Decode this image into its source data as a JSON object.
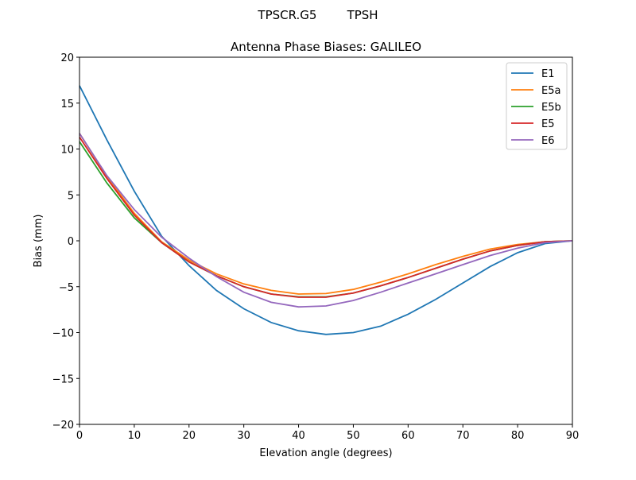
{
  "suptitle": "TPSCR.G5        TPSH",
  "chart_data": {
    "type": "line",
    "title": "Antenna Phase Biases: GALILEO",
    "xlabel": "Elevation angle (degrees)",
    "ylabel": "Bias (mm)",
    "xlim": [
      0,
      90
    ],
    "ylim": [
      -20,
      20
    ],
    "xticks": [
      0,
      10,
      20,
      30,
      40,
      50,
      60,
      70,
      80,
      90
    ],
    "yticks": [
      -20,
      -15,
      -10,
      -5,
      0,
      5,
      10,
      15,
      20
    ],
    "ytick_labels": [
      "−20",
      "−15",
      "−10",
      "−5",
      "0",
      "5",
      "10",
      "15",
      "20"
    ],
    "grid": false,
    "legend_position": "top-right",
    "x": [
      0,
      5,
      10,
      15,
      20,
      25,
      30,
      35,
      40,
      45,
      50,
      55,
      60,
      65,
      70,
      75,
      80,
      85,
      90
    ],
    "series": [
      {
        "name": "E1",
        "color": "#1f77b4",
        "values": [
          16.9,
          11.0,
          5.4,
          0.5,
          -2.7,
          -5.4,
          -7.4,
          -8.9,
          -9.8,
          -10.2,
          -10.0,
          -9.3,
          -8.0,
          -6.4,
          -4.6,
          -2.8,
          -1.3,
          -0.3,
          0
        ]
      },
      {
        "name": "E5a",
        "color": "#ff7f0e",
        "values": [
          11.7,
          7.0,
          3.0,
          -0.1,
          -2.1,
          -3.6,
          -4.7,
          -5.4,
          -5.8,
          -5.75,
          -5.3,
          -4.5,
          -3.6,
          -2.6,
          -1.7,
          -0.9,
          -0.4,
          -0.1,
          0
        ]
      },
      {
        "name": "E5b",
        "color": "#2ca02c",
        "values": [
          10.8,
          6.3,
          2.5,
          -0.2,
          -2.3,
          -3.8,
          -5.0,
          -5.8,
          -6.1,
          -6.1,
          -5.7,
          -4.9,
          -4.0,
          -3.0,
          -2.0,
          -1.1,
          -0.5,
          -0.1,
          0
        ]
      },
      {
        "name": "E5",
        "color": "#d62728",
        "values": [
          11.3,
          6.8,
          2.8,
          -0.2,
          -2.3,
          -3.8,
          -5.0,
          -5.8,
          -6.15,
          -6.15,
          -5.7,
          -4.9,
          -4.0,
          -3.0,
          -2.0,
          -1.1,
          -0.5,
          -0.1,
          0
        ]
      },
      {
        "name": "E6",
        "color": "#9467bd",
        "values": [
          11.7,
          7.1,
          3.4,
          0.4,
          -1.9,
          -3.9,
          -5.6,
          -6.7,
          -7.2,
          -7.1,
          -6.5,
          -5.6,
          -4.6,
          -3.6,
          -2.6,
          -1.6,
          -0.8,
          -0.2,
          0
        ]
      }
    ]
  }
}
